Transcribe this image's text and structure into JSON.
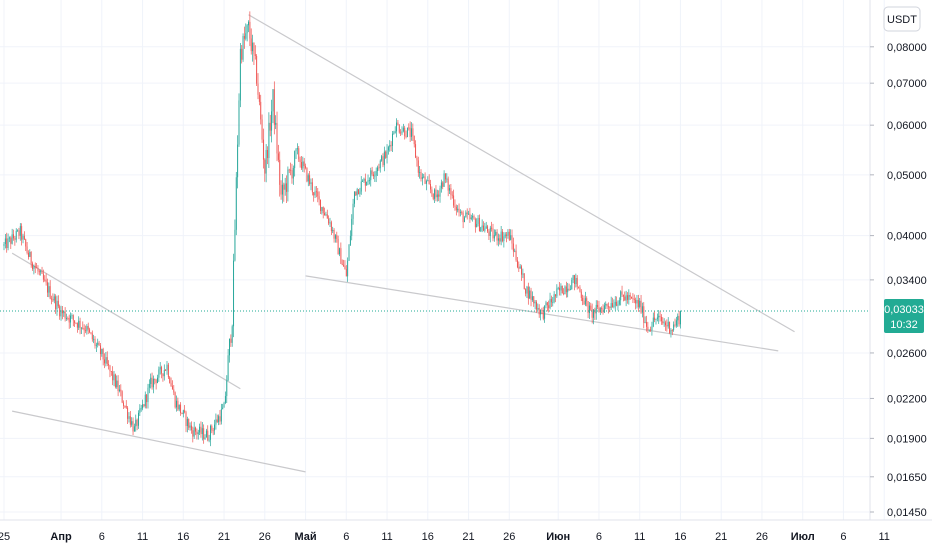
{
  "chart_data": {
    "type": "candlestick",
    "quote_currency_label": "USDT",
    "y_scale": "log",
    "ylim": [
      0.0145,
      0.095
    ],
    "y_ticks": [
      "0,08000",
      "0,07000",
      "0,06000",
      "0,05000",
      "0,04000",
      "0,03400",
      "0,02600",
      "0,02200",
      "0,01900",
      "0,01650",
      "0,01450"
    ],
    "x_ticks": [
      "25",
      "Апр",
      "6",
      "11",
      "16",
      "21",
      "26",
      "Май",
      "6",
      "11",
      "16",
      "21",
      "26",
      "Июн",
      "6",
      "11",
      "16",
      "21",
      "26",
      "Июл",
      "6",
      "11"
    ],
    "current_price": {
      "value_label": "0,03033",
      "countdown": "10:32"
    },
    "colors": {
      "up": "#26a69a",
      "down": "#ef5350",
      "price_tag": "#22ab94",
      "trendline": "#c9c9cc"
    },
    "trendlines": [
      {
        "name": "upper-1",
        "from": [
          "Mar 26",
          0.0375
        ],
        "to": [
          "Apr 23",
          0.0228
        ]
      },
      {
        "name": "lower-1",
        "from": [
          "Mar 26",
          0.021
        ],
        "to": [
          "May 1",
          0.0168
        ]
      },
      {
        "name": "upper-2",
        "from": [
          "Apr 24",
          0.09
        ],
        "to": [
          "Jun 30",
          0.0281
        ]
      },
      {
        "name": "lower-2",
        "from": [
          "May 1",
          0.0345
        ],
        "to": [
          "Jun 28",
          0.0262
        ]
      }
    ],
    "anchors": [
      [
        "Mar 25",
        0.0385
      ],
      [
        "Mar 27",
        0.0405
      ],
      [
        "Mar 28",
        0.0372
      ],
      [
        "Apr 1",
        0.0302
      ],
      [
        "Apr 4",
        0.0285
      ],
      [
        "Apr 6",
        0.0258
      ],
      [
        "Apr 8",
        0.0228
      ],
      [
        "Apr 10",
        0.0196
      ],
      [
        "Apr 12",
        0.0232
      ],
      [
        "Apr 14",
        0.0248
      ],
      [
        "Apr 15",
        0.0218
      ],
      [
        "Apr 17",
        0.0196
      ],
      [
        "Apr 19",
        0.0192
      ],
      [
        "Apr 21",
        0.0212
      ],
      [
        "Apr 22",
        0.0298
      ],
      [
        "Apr 23",
        0.0785
      ],
      [
        "Apr 24",
        0.0855
      ],
      [
        "Apr 25",
        0.072
      ],
      [
        "Apr 26",
        0.051
      ],
      [
        "Apr 27",
        0.066
      ],
      [
        "Apr 28",
        0.046
      ],
      [
        "Apr 30",
        0.054
      ],
      [
        "May 2",
        0.047
      ],
      [
        "May 4",
        0.042
      ],
      [
        "May 6",
        0.0345
      ],
      [
        "May 7",
        0.047
      ],
      [
        "May 9",
        0.05
      ],
      [
        "May 11",
        0.054
      ],
      [
        "May 12",
        0.06
      ],
      [
        "May 14",
        0.058
      ],
      [
        "May 15",
        0.05
      ],
      [
        "May 17",
        0.046
      ],
      [
        "May 18",
        0.0495
      ],
      [
        "May 20",
        0.043
      ],
      [
        "May 22",
        0.042
      ],
      [
        "May 24",
        0.04
      ],
      [
        "May 26",
        0.04
      ],
      [
        "May 28",
        0.033
      ],
      [
        "May 30",
        0.03
      ],
      [
        "Jun 1",
        0.0325
      ],
      [
        "Jun 3",
        0.034
      ],
      [
        "Jun 5",
        0.03
      ],
      [
        "Jun 7",
        0.031
      ],
      [
        "Jun 9",
        0.032
      ],
      [
        "Jun 11",
        0.031
      ],
      [
        "Jun 12",
        0.0285
      ],
      [
        "Jun 13",
        0.0295
      ],
      [
        "Jun 14",
        0.029
      ],
      [
        "Jun 15",
        0.0285
      ],
      [
        "Jun 16",
        0.0298
      ]
    ]
  }
}
